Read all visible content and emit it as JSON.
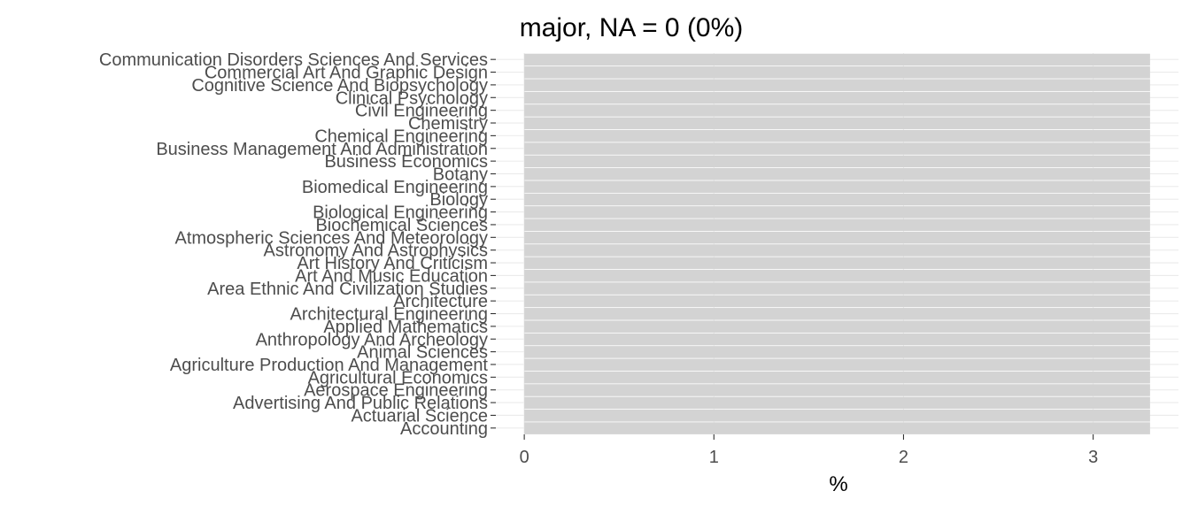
{
  "chart_data": {
    "type": "bar",
    "orientation": "horizontal",
    "title": "major, NA = 0 (0%)",
    "xlabel": "%",
    "ylabel": "",
    "xlim": [
      -0.15,
      3.45
    ],
    "x_ticks": [
      0,
      1,
      2,
      3
    ],
    "grid": true,
    "legend": "none",
    "bar_color": "#d3d3d3",
    "grid_color": "#ebebeb",
    "categories": [
      "Accounting",
      "Actuarial Science",
      "Advertising And Public Relations",
      "Aerospace Engineering",
      "Agricultural Economics",
      "Agriculture Production And Management",
      "Animal Sciences",
      "Anthropology And Archeology",
      "Applied Mathematics",
      "Architectural Engineering",
      "Architecture",
      "Area Ethnic And Civilization Studies",
      "Art And Music Education",
      "Art History And Criticism",
      "Astronomy And Astrophysics",
      "Atmospheric Sciences And Meteorology",
      "Biochemical Sciences",
      "Biological Engineering",
      "Biology",
      "Biomedical Engineering",
      "Botany",
      "Business Economics",
      "Business Management And Administration",
      "Chemical Engineering",
      "Chemistry",
      "Civil Engineering",
      "Clinical Psychology",
      "Cognitive Science And Biopsychology",
      "Commercial Art And Graphic Design",
      "Communication Disorders Sciences And Services"
    ],
    "values": [
      3.3,
      3.3,
      3.3,
      3.3,
      3.3,
      3.3,
      3.3,
      3.3,
      3.3,
      3.3,
      3.3,
      3.3,
      3.3,
      3.3,
      3.3,
      3.3,
      3.3,
      3.3,
      3.3,
      3.3,
      3.3,
      3.3,
      3.3,
      3.3,
      3.3,
      3.3,
      3.3,
      3.3,
      3.3,
      3.3
    ]
  }
}
